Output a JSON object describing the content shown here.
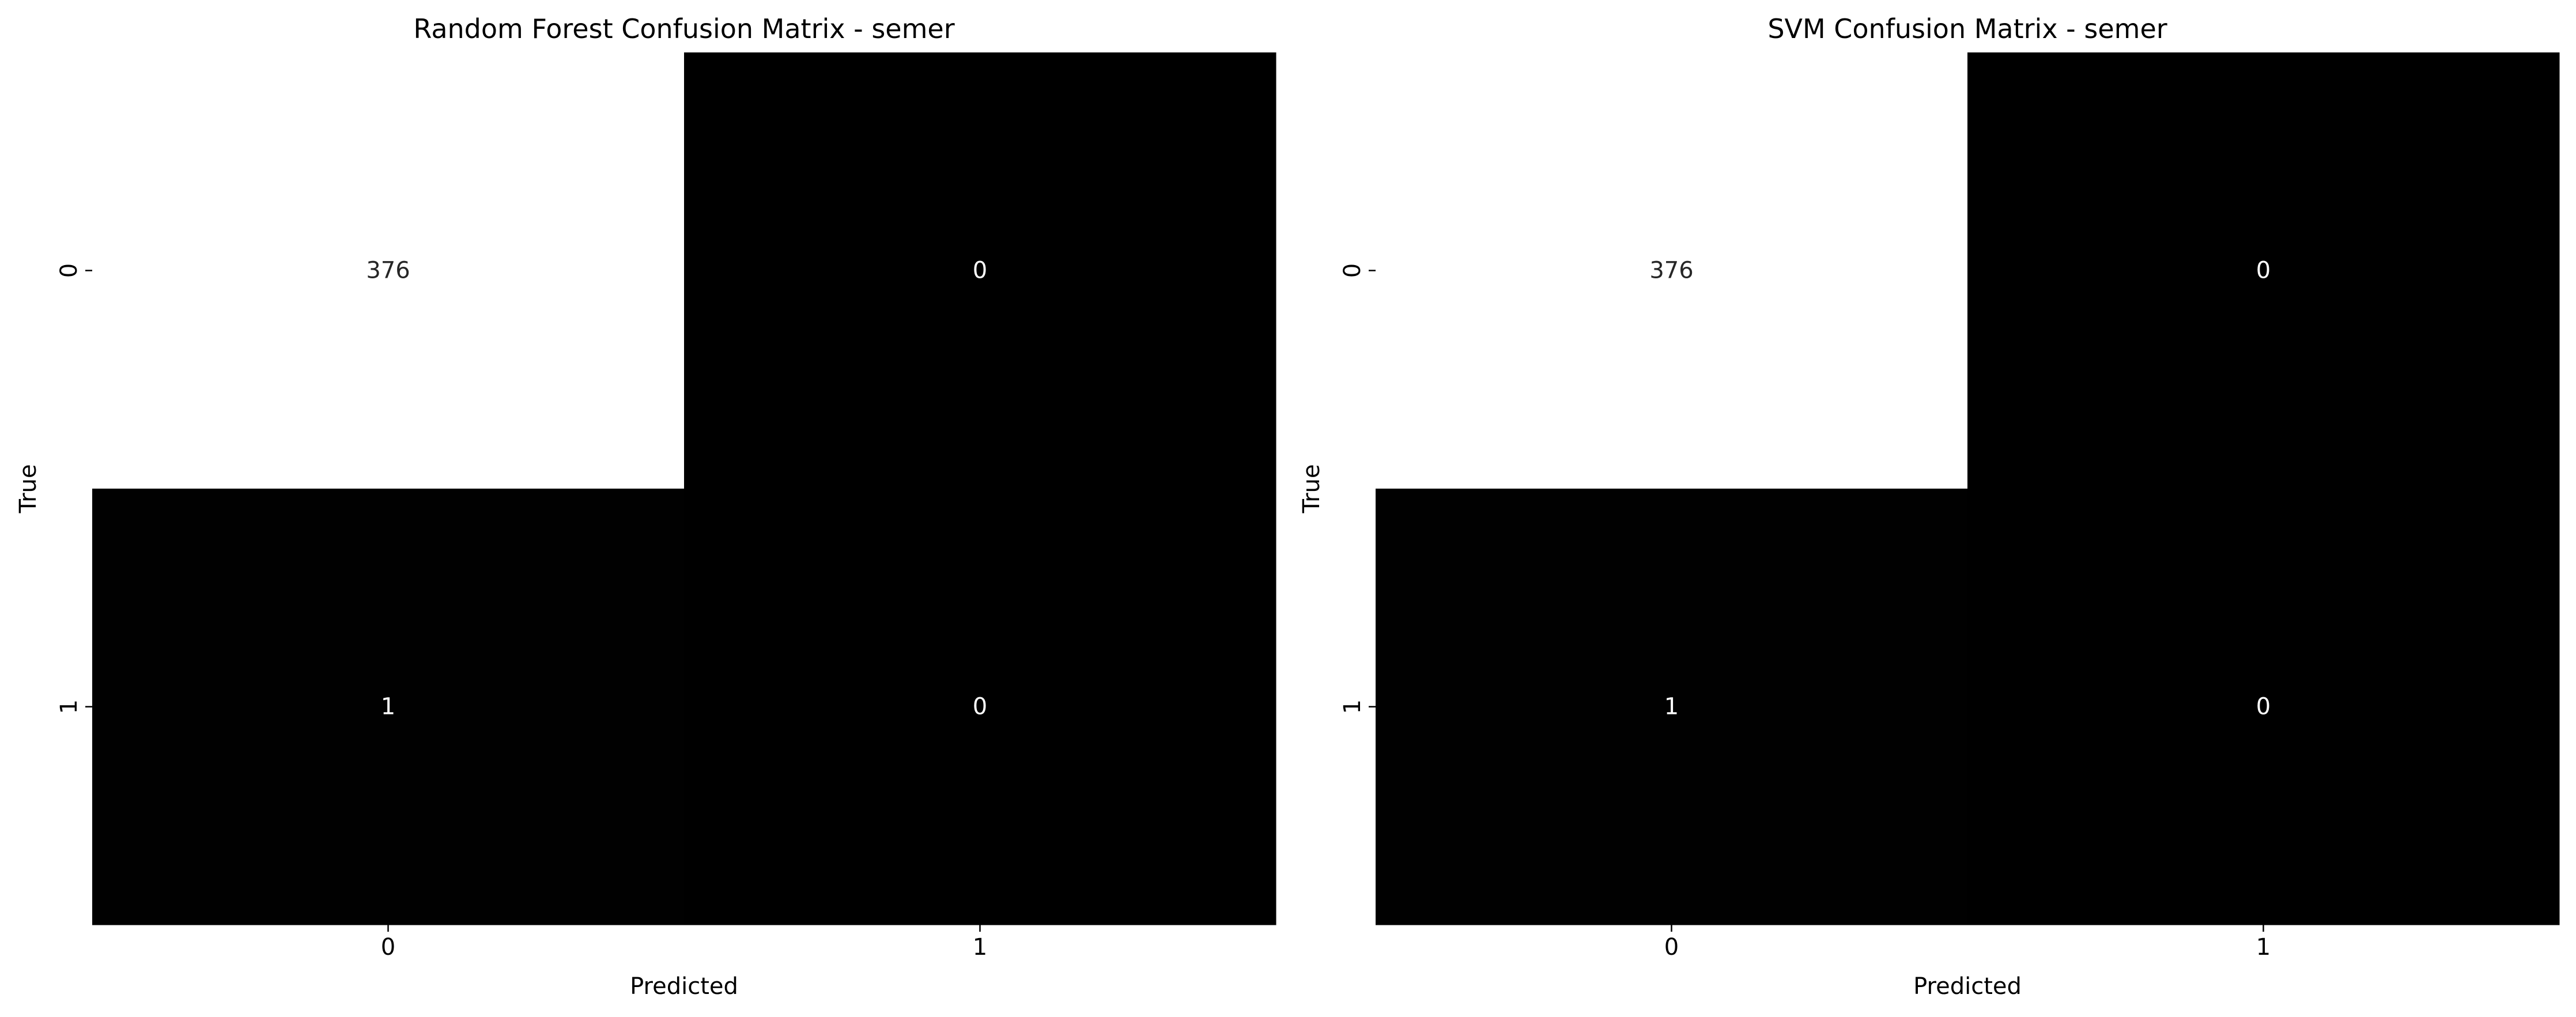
{
  "chart_data": [
    {
      "type": "heatmap",
      "title": "Random Forest Confusion Matrix - semer",
      "xlabel": "Predicted",
      "ylabel": "True",
      "x_categories": [
        "0",
        "1"
      ],
      "y_categories": [
        "0",
        "1"
      ],
      "values": [
        [
          376,
          0
        ],
        [
          1,
          0
        ]
      ],
      "colormap": {
        "low": "#000000",
        "high": "#ffffff"
      },
      "colorbar": false,
      "grid": false
    },
    {
      "type": "heatmap",
      "title": "SVM Confusion Matrix - semer",
      "xlabel": "Predicted",
      "ylabel": "True",
      "x_categories": [
        "0",
        "1"
      ],
      "y_categories": [
        "0",
        "1"
      ],
      "values": [
        [
          376,
          0
        ],
        [
          1,
          0
        ]
      ],
      "colormap": {
        "low": "#000000",
        "high": "#ffffff"
      },
      "colorbar": false,
      "grid": false
    }
  ]
}
